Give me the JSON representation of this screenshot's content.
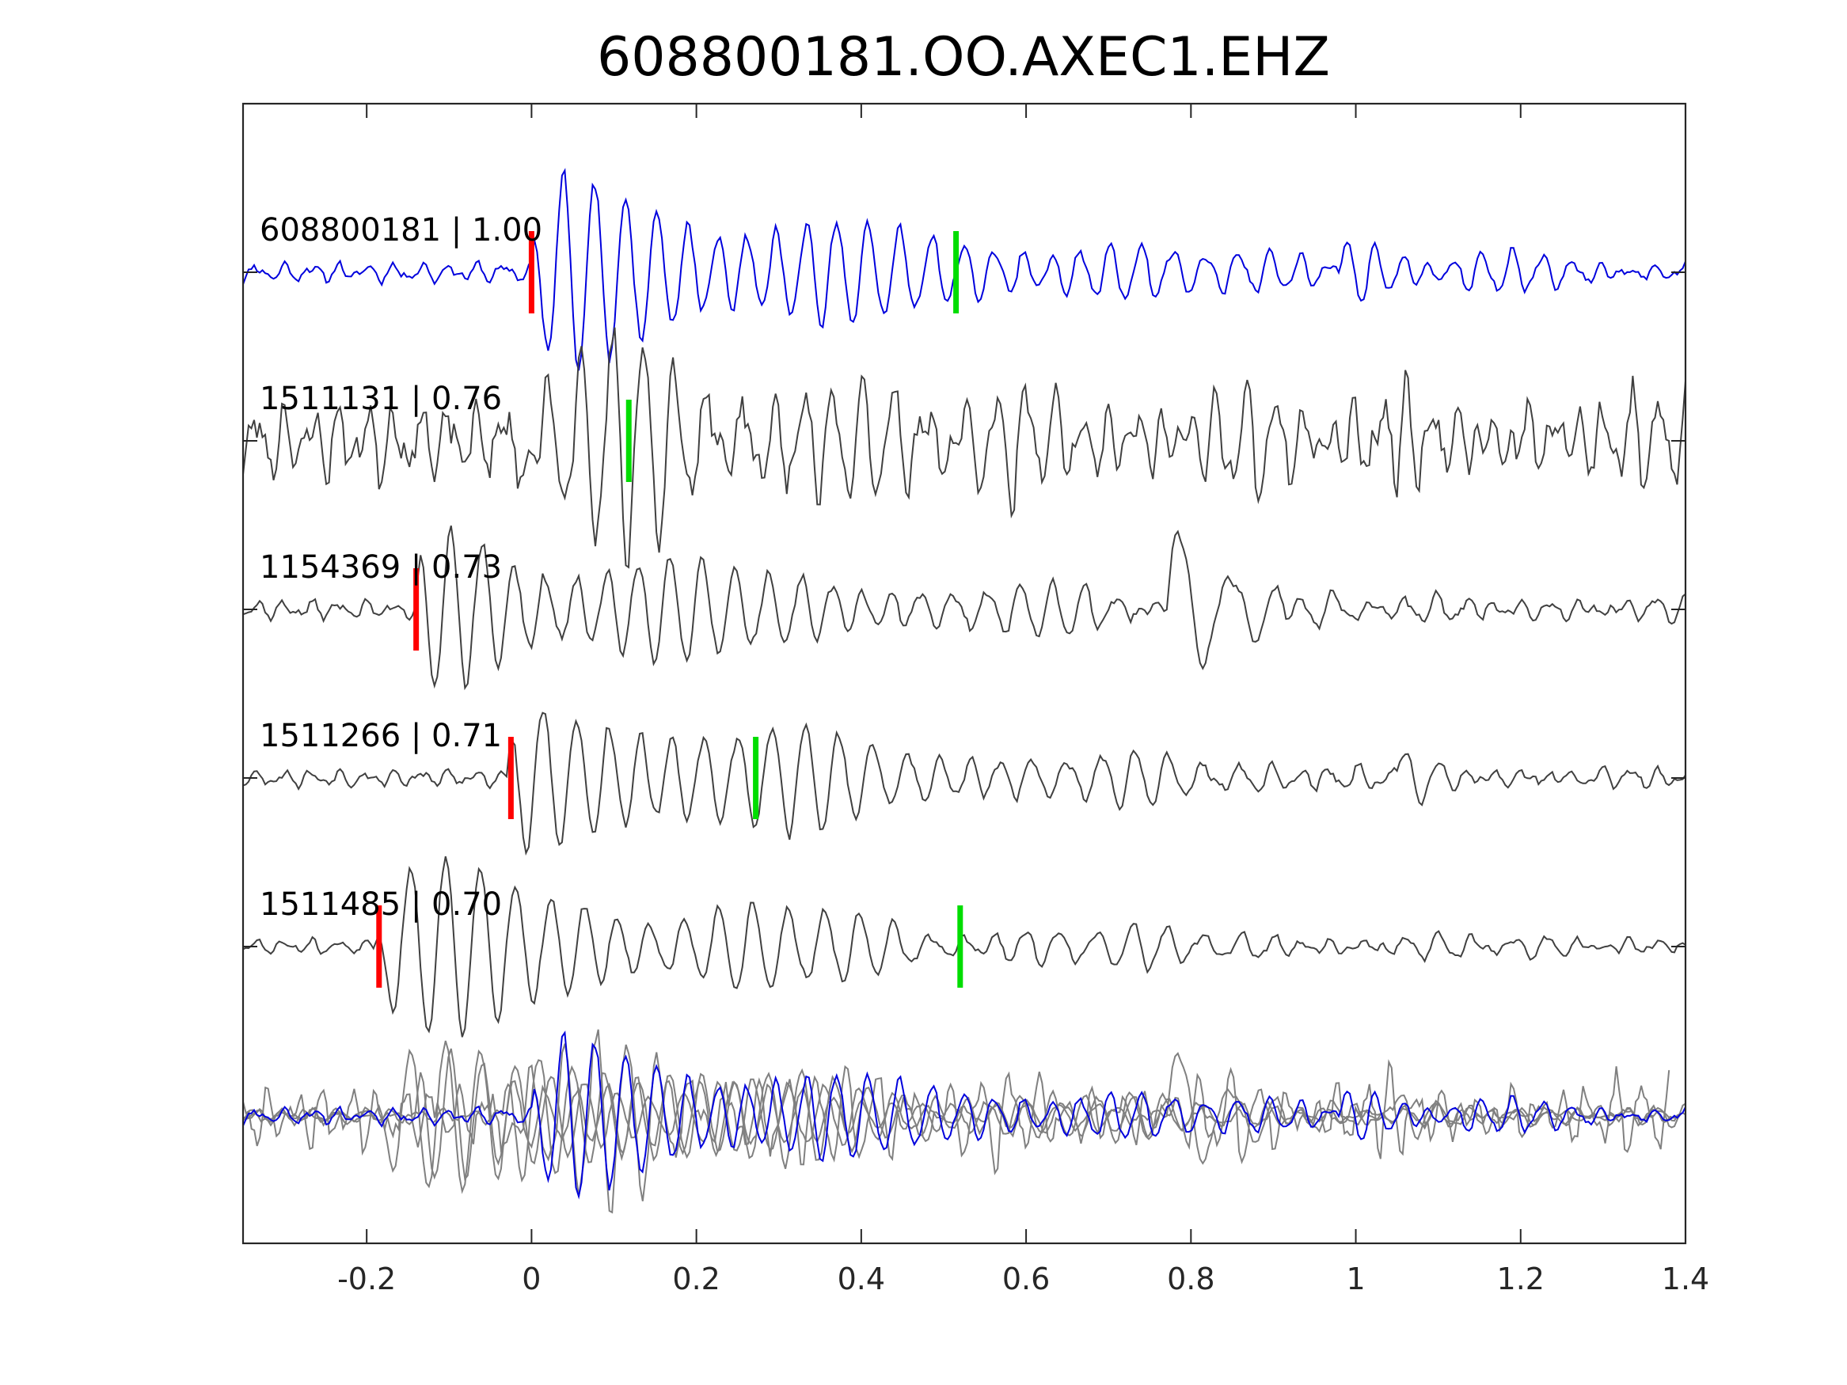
{
  "chart_data": {
    "type": "line",
    "title": "608800181.OO.AXEC1.EHZ",
    "xlabel": "",
    "ylabel": "",
    "xlim": [
      -0.35,
      1.4
    ],
    "xticks": [
      -0.2,
      0,
      0.2,
      0.4,
      0.6,
      0.8,
      1,
      1.2,
      1.4
    ],
    "xtick_labels": [
      "-0.2",
      "0",
      "0.2",
      "0.4",
      "0.6",
      "0.8",
      "1",
      "1.2",
      "1.4"
    ],
    "grid": false,
    "legend": "none",
    "colors": {
      "reference": "#0000dd",
      "neighbor": "#404040",
      "overlay_neighbor": "#808080",
      "p_pick": "#ff0000",
      "s_pick": "#00dd00"
    },
    "traces": [
      {
        "label": "608800181 | 1.00",
        "event_id": "608800181",
        "correlation": 1.0,
        "p_pick": 0.0,
        "s_pick": 0.515
      },
      {
        "label": "1511131 | 0.76",
        "event_id": "1511131",
        "correlation": 0.76,
        "p_pick": null,
        "s_pick": 0.118
      },
      {
        "label": "1154369 | 0.73",
        "event_id": "1154369",
        "correlation": 0.73,
        "p_pick": -0.14,
        "s_pick": null
      },
      {
        "label": "1511266 | 0.71",
        "event_id": "1511266",
        "correlation": 0.71,
        "p_pick": -0.025,
        "s_pick": 0.272
      },
      {
        "label": "1511485 | 0.70",
        "event_id": "1511485",
        "correlation": 0.7,
        "p_pick": -0.185,
        "s_pick": 0.52
      }
    ],
    "overlay": {
      "description": "all traces superimposed",
      "count": 5
    }
  }
}
